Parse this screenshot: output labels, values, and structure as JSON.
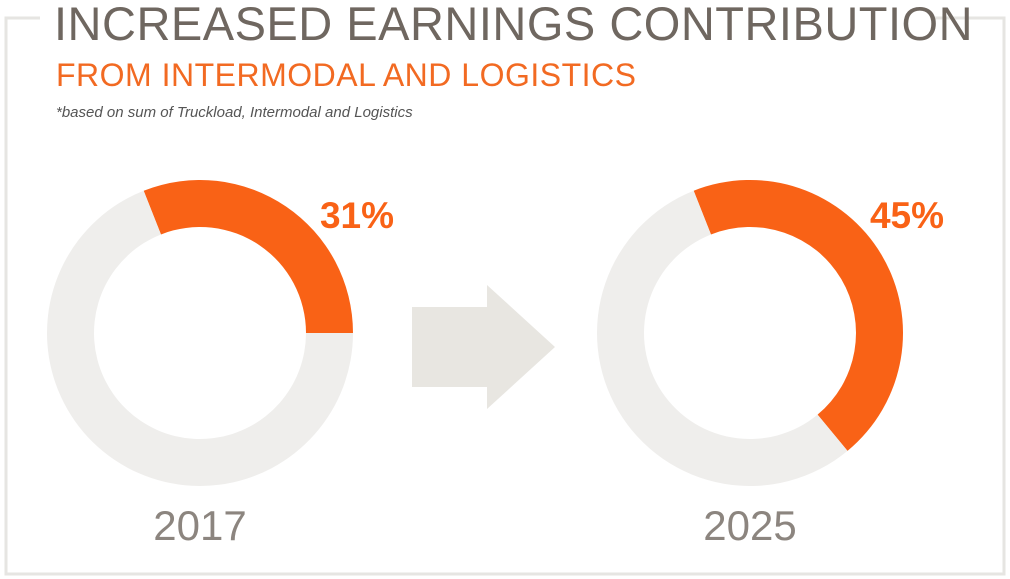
{
  "title": "INCREASED EARNINGS CONTRIBUTION",
  "subtitle": "FROM INTERMODAL AND LOGISTICS",
  "note": "*based on sum of Truckload, Intermodal and Logistics",
  "chart_data": [
    {
      "type": "pie",
      "caption": "2017",
      "values": [
        31,
        69
      ],
      "value_labels": [
        "31%",
        null
      ],
      "colors": [
        "#f96216",
        "#efeeec"
      ]
    },
    {
      "type": "pie",
      "caption": "2025",
      "values": [
        45,
        55
      ],
      "value_labels": [
        "45%",
        null
      ],
      "colors": [
        "#f96216",
        "#efeeec"
      ]
    }
  ]
}
